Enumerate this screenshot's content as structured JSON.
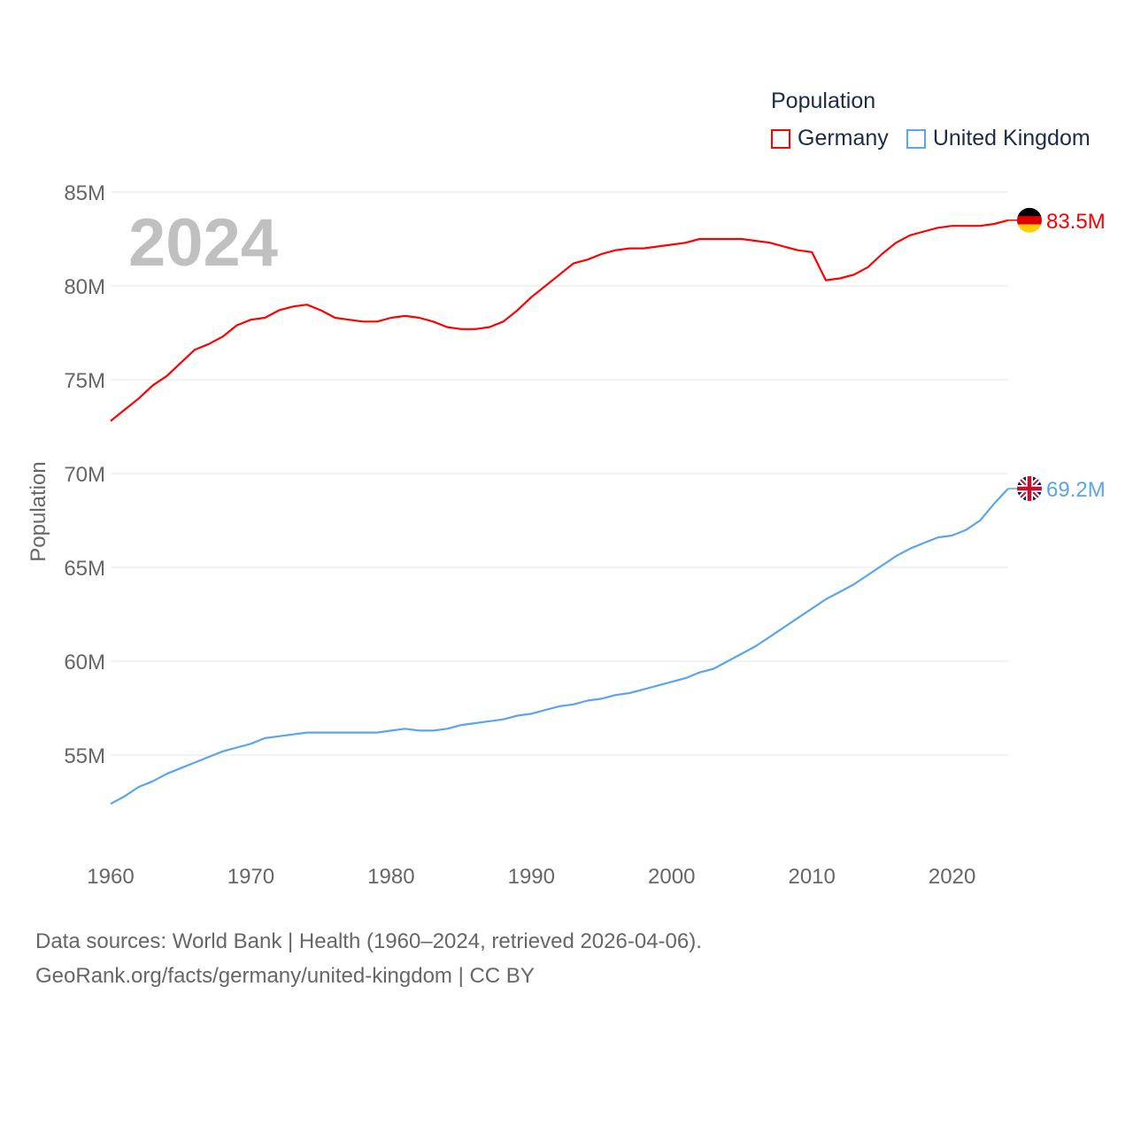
{
  "chart_data": {
    "type": "line",
    "title": "Population",
    "ylabel": "Population",
    "xlabel": "",
    "ylim": [
      51.5,
      85
    ],
    "xlim": [
      1960,
      2024
    ],
    "y_ticks": [
      55,
      60,
      65,
      70,
      75,
      80,
      85
    ],
    "y_tick_labels": [
      "55M",
      "60M",
      "65M",
      "70M",
      "75M",
      "80M",
      "85M"
    ],
    "x_ticks": [
      1960,
      1970,
      1980,
      1990,
      2000,
      2010,
      2020
    ],
    "x_tick_labels": [
      "1960",
      "1970",
      "1980",
      "1990",
      "2000",
      "2010",
      "2020"
    ],
    "grid": true,
    "legend_placement": "top-right",
    "year_label": "2024",
    "x": [
      1960,
      1961,
      1962,
      1963,
      1964,
      1965,
      1966,
      1967,
      1968,
      1969,
      1970,
      1971,
      1972,
      1973,
      1974,
      1975,
      1976,
      1977,
      1978,
      1979,
      1980,
      1981,
      1982,
      1983,
      1984,
      1985,
      1986,
      1987,
      1988,
      1989,
      1990,
      1991,
      1992,
      1993,
      1994,
      1995,
      1996,
      1997,
      1998,
      1999,
      2000,
      2001,
      2002,
      2003,
      2004,
      2005,
      2006,
      2007,
      2008,
      2009,
      2010,
      2011,
      2012,
      2013,
      2014,
      2015,
      2016,
      2017,
      2018,
      2019,
      2020,
      2021,
      2022,
      2023,
      2024
    ],
    "series": [
      {
        "name": "Germany",
        "color": "#ff0000",
        "end_label": "83.5M",
        "values": [
          72.8,
          73.4,
          74.0,
          74.7,
          75.2,
          75.9,
          76.6,
          76.9,
          77.3,
          77.9,
          78.2,
          78.3,
          78.7,
          78.9,
          79.0,
          78.7,
          78.3,
          78.2,
          78.1,
          78.1,
          78.3,
          78.4,
          78.3,
          78.1,
          77.8,
          77.7,
          77.7,
          77.8,
          78.1,
          78.7,
          79.4,
          80.0,
          80.6,
          81.2,
          81.4,
          81.7,
          81.9,
          82.0,
          82.0,
          82.1,
          82.2,
          82.3,
          82.5,
          82.5,
          82.5,
          82.5,
          82.4,
          82.3,
          82.1,
          81.9,
          81.8,
          80.3,
          80.4,
          80.6,
          81.0,
          81.7,
          82.3,
          82.7,
          82.9,
          83.1,
          83.2,
          83.2,
          83.2,
          83.3,
          83.5
        ]
      },
      {
        "name": "United Kingdom",
        "color": "#5aa5ec",
        "end_label": "69.2M",
        "values": [
          52.4,
          52.8,
          53.3,
          53.6,
          54.0,
          54.3,
          54.6,
          54.9,
          55.2,
          55.4,
          55.6,
          55.9,
          56.0,
          56.1,
          56.2,
          56.2,
          56.2,
          56.2,
          56.2,
          56.2,
          56.3,
          56.4,
          56.3,
          56.3,
          56.4,
          56.6,
          56.7,
          56.8,
          56.9,
          57.1,
          57.2,
          57.4,
          57.6,
          57.7,
          57.9,
          58.0,
          58.2,
          58.3,
          58.5,
          58.7,
          58.9,
          59.1,
          59.4,
          59.6,
          60.0,
          60.4,
          60.8,
          61.3,
          61.8,
          62.3,
          62.8,
          63.3,
          63.7,
          64.1,
          64.6,
          65.1,
          65.6,
          66.0,
          66.3,
          66.6,
          66.7,
          67.0,
          67.5,
          68.4,
          69.2
        ]
      }
    ]
  },
  "legend": {
    "title": "Population",
    "items": [
      "Germany",
      "United Kingdom"
    ]
  },
  "footer": {
    "line1": "Data sources: World Bank | Health (1960–2024, retrieved 2026-04-06).",
    "line2": "GeoRank.org/facts/germany/united-kingdom | CC BY"
  }
}
